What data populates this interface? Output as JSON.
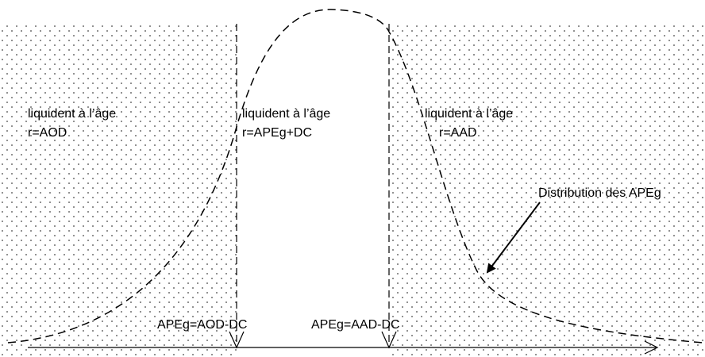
{
  "regions": [
    {
      "line1": "liquident à l’âge",
      "line2": "r=AOD"
    },
    {
      "line1": "liquident à l’âge",
      "line2": "r=APEg+DC"
    },
    {
      "line1": "liquident à l’âge",
      "line2": "r=AAD"
    }
  ],
  "thresholds": [
    "APEg=AOD-DC",
    "APEg=AAD-DC"
  ],
  "curve_label": "Distribution des APEg"
}
